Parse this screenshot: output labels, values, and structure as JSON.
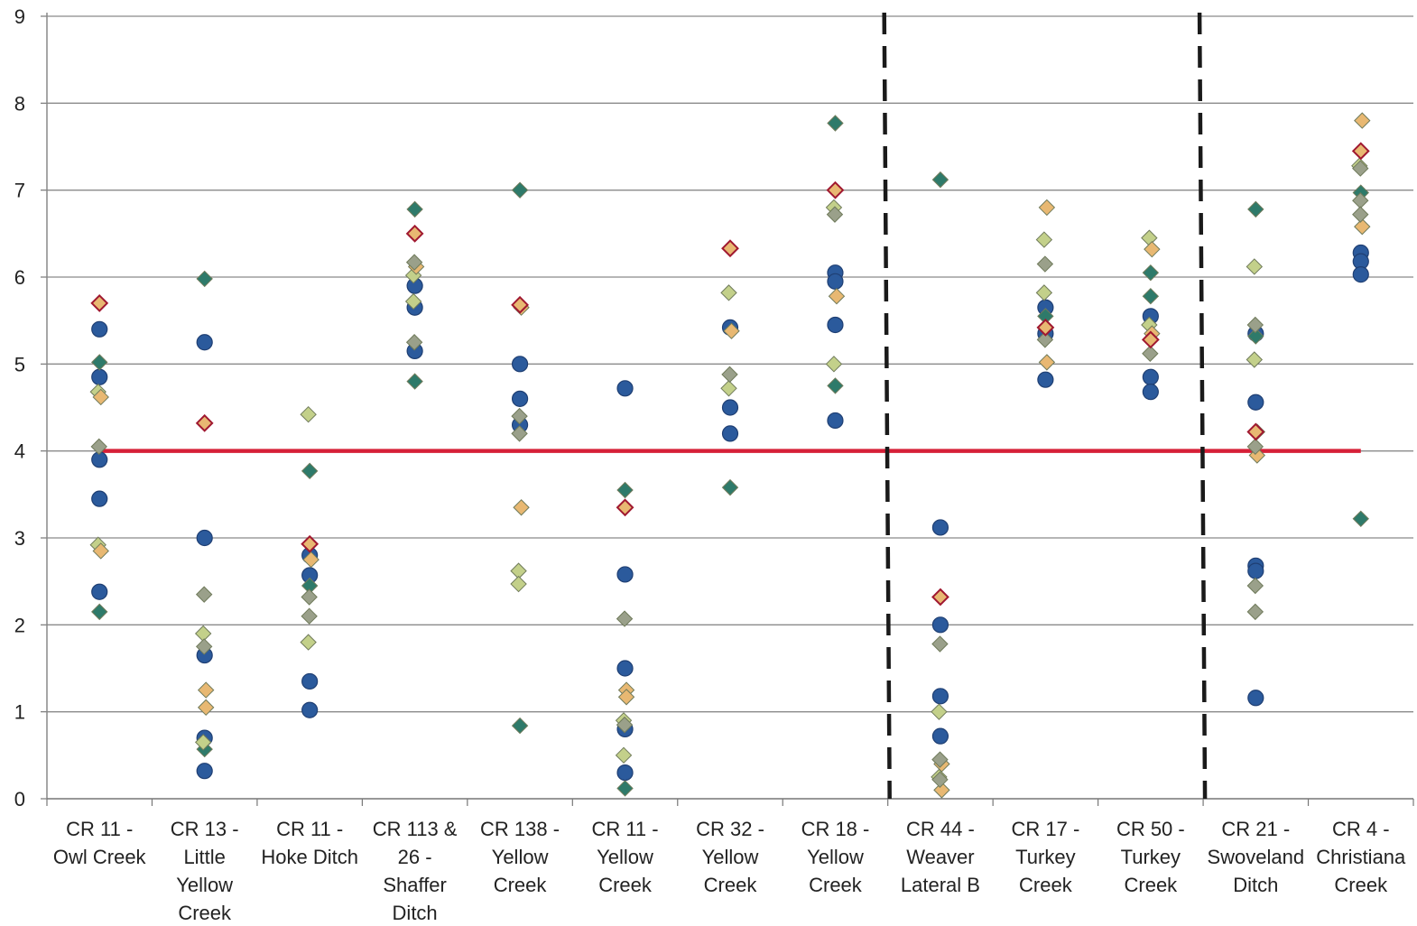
{
  "chart_data": {
    "type": "scatter",
    "ylim": [
      0,
      9
    ],
    "yticks": [
      "0",
      "1",
      "2",
      "3",
      "4",
      "5",
      "6",
      "7",
      "8",
      "9"
    ],
    "grid": true,
    "categories": [
      [
        "CR 11 -",
        "Owl Creek"
      ],
      [
        "CR 13 -",
        "Little",
        "Yellow",
        "Creek"
      ],
      [
        "CR 11 -",
        "Hoke Ditch"
      ],
      [
        "CR 113 &",
        "26 -",
        "Shaffer",
        "Ditch"
      ],
      [
        "CR 138 -",
        "Yellow",
        "Creek"
      ],
      [
        "CR 11 -",
        "Yellow",
        "Creek"
      ],
      [
        "CR 32 -",
        "Yellow",
        "Creek"
      ],
      [
        "CR 18 -",
        "Yellow",
        "Creek"
      ],
      [
        "CR 44 -",
        "Weaver",
        "Lateral B"
      ],
      [
        "CR 17 -",
        "Turkey",
        "Creek"
      ],
      [
        "CR 50 -",
        "Turkey",
        "Creek"
      ],
      [
        "CR 21 -",
        "Swoveland",
        "Ditch"
      ],
      [
        "CR 4 -",
        "Christiana",
        "Creek"
      ]
    ],
    "reference_line": {
      "y": 4,
      "color": "#d62038"
    },
    "group_separators_after_category": [
      8,
      11
    ],
    "series": [
      {
        "marker": "circle",
        "color": "#2b5a9c",
        "points": [
          [
            1,
            5.4
          ],
          [
            1,
            4.85
          ],
          [
            1,
            3.9
          ],
          [
            1,
            3.45
          ],
          [
            1,
            2.38
          ],
          [
            2,
            5.25
          ],
          [
            2,
            3.0
          ],
          [
            2,
            1.65
          ],
          [
            2,
            0.7
          ],
          [
            2,
            0.32
          ],
          [
            3,
            2.8
          ],
          [
            3,
            2.57
          ],
          [
            3,
            1.35
          ],
          [
            3,
            1.02
          ],
          [
            4,
            5.9
          ],
          [
            4,
            5.65
          ],
          [
            4,
            5.15
          ],
          [
            5,
            5.0
          ],
          [
            5,
            4.6
          ],
          [
            5,
            4.3
          ],
          [
            6,
            4.72
          ],
          [
            6,
            2.58
          ],
          [
            6,
            1.5
          ],
          [
            6,
            0.8
          ],
          [
            6,
            0.3
          ],
          [
            7,
            5.42
          ],
          [
            7,
            4.5
          ],
          [
            7,
            4.2
          ],
          [
            8,
            6.05
          ],
          [
            8,
            5.95
          ],
          [
            8,
            5.45
          ],
          [
            8,
            4.35
          ],
          [
            9,
            3.12
          ],
          [
            9,
            2.0
          ],
          [
            9,
            1.18
          ],
          [
            9,
            0.72
          ],
          [
            10,
            5.65
          ],
          [
            10,
            5.35
          ],
          [
            10,
            4.82
          ],
          [
            11,
            5.55
          ],
          [
            11,
            4.85
          ],
          [
            11,
            4.68
          ],
          [
            12,
            5.35
          ],
          [
            12,
            4.56
          ],
          [
            12,
            2.68
          ],
          [
            12,
            2.62
          ],
          [
            12,
            1.16
          ],
          [
            13,
            6.28
          ],
          [
            13,
            6.18
          ],
          [
            13,
            6.03
          ]
        ]
      },
      {
        "marker": "diamond",
        "color": "#2e7a6a",
        "points": [
          [
            1,
            5.02
          ],
          [
            1,
            2.15
          ],
          [
            2,
            5.98
          ],
          [
            2,
            0.57
          ],
          [
            3,
            3.77
          ],
          [
            3,
            2.45
          ],
          [
            4,
            6.78
          ],
          [
            4,
            4.8
          ],
          [
            5,
            7.0
          ],
          [
            5,
            0.84
          ],
          [
            6,
            3.55
          ],
          [
            6,
            0.12
          ],
          [
            7,
            3.58
          ],
          [
            8,
            7.77
          ],
          [
            8,
            4.75
          ],
          [
            9,
            7.12
          ],
          [
            10,
            5.55
          ],
          [
            11,
            6.05
          ],
          [
            11,
            5.78
          ],
          [
            12,
            6.78
          ],
          [
            12,
            5.32
          ],
          [
            13,
            6.97
          ],
          [
            13,
            3.22
          ]
        ]
      },
      {
        "marker": "diamond",
        "color": "#c3d08a",
        "points": [
          [
            1,
            4.68
          ],
          [
            1,
            2.92
          ],
          [
            2,
            1.9
          ],
          [
            2,
            0.65
          ],
          [
            3,
            4.42
          ],
          [
            3,
            1.8
          ],
          [
            4,
            6.02
          ],
          [
            4,
            5.72
          ],
          [
            5,
            2.62
          ],
          [
            5,
            2.47
          ],
          [
            6,
            0.9
          ],
          [
            6,
            0.5
          ],
          [
            7,
            5.82
          ],
          [
            7,
            4.72
          ],
          [
            8,
            6.8
          ],
          [
            8,
            5.0
          ],
          [
            9,
            1.0
          ],
          [
            9,
            0.25
          ],
          [
            10,
            6.43
          ],
          [
            10,
            5.82
          ],
          [
            11,
            6.45
          ],
          [
            11,
            5.45
          ],
          [
            12,
            6.12
          ],
          [
            12,
            5.05
          ],
          [
            13,
            7.28
          ]
        ]
      },
      {
        "marker": "diamond",
        "color": "#e8b872",
        "points": [
          [
            1,
            4.62
          ],
          [
            1,
            2.85
          ],
          [
            2,
            1.25
          ],
          [
            2,
            1.05
          ],
          [
            3,
            2.75
          ],
          [
            4,
            6.12
          ],
          [
            5,
            5.65
          ],
          [
            5,
            3.35
          ],
          [
            6,
            1.25
          ],
          [
            6,
            1.17
          ],
          [
            7,
            5.38
          ],
          [
            8,
            5.78
          ],
          [
            9,
            0.4
          ],
          [
            9,
            0.1
          ],
          [
            10,
            6.8
          ],
          [
            10,
            5.02
          ],
          [
            11,
            6.32
          ],
          [
            11,
            5.35
          ],
          [
            12,
            4.22
          ],
          [
            12,
            3.95
          ],
          [
            13,
            7.8
          ],
          [
            13,
            6.58
          ]
        ]
      },
      {
        "marker": "diamond",
        "color": "#9aa08a",
        "points": [
          [
            1,
            4.05
          ],
          [
            2,
            2.35
          ],
          [
            2,
            1.75
          ],
          [
            3,
            2.32
          ],
          [
            3,
            2.1
          ],
          [
            4,
            6.17
          ],
          [
            4,
            5.25
          ],
          [
            5,
            4.4
          ],
          [
            5,
            4.2
          ],
          [
            6,
            2.07
          ],
          [
            6,
            0.85
          ],
          [
            7,
            4.88
          ],
          [
            8,
            6.72
          ],
          [
            9,
            1.78
          ],
          [
            9,
            0.45
          ],
          [
            9,
            0.22
          ],
          [
            10,
            6.15
          ],
          [
            10,
            5.28
          ],
          [
            11,
            5.12
          ],
          [
            12,
            5.45
          ],
          [
            12,
            2.45
          ],
          [
            12,
            2.15
          ],
          [
            12,
            4.05
          ],
          [
            13,
            7.25
          ],
          [
            13,
            6.88
          ],
          [
            13,
            6.72
          ]
        ]
      },
      {
        "marker": "diamond",
        "color": "#e8b872",
        "edge": "#a01830",
        "points": [
          [
            1,
            5.7
          ],
          [
            2,
            4.32
          ],
          [
            3,
            2.93
          ],
          [
            4,
            6.5
          ],
          [
            5,
            5.68
          ],
          [
            6,
            3.35
          ],
          [
            7,
            6.33
          ],
          [
            8,
            7.0
          ],
          [
            9,
            2.32
          ],
          [
            10,
            5.42
          ],
          [
            11,
            5.28
          ],
          [
            12,
            4.22
          ],
          [
            13,
            7.45
          ]
        ]
      }
    ]
  }
}
